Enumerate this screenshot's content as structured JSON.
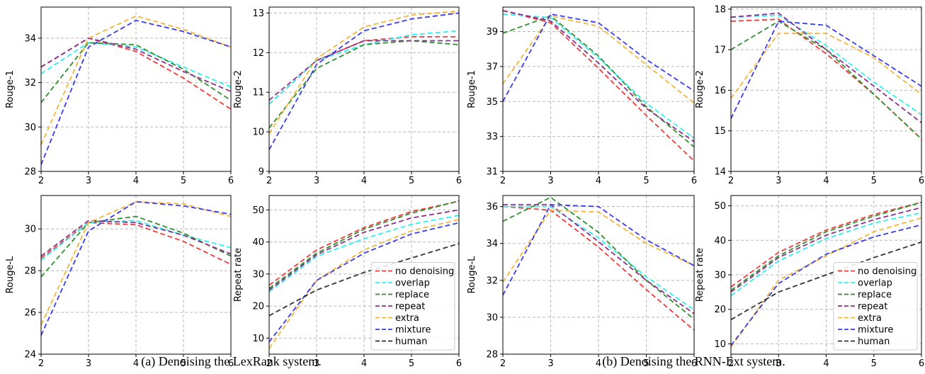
{
  "captions": [
    "(a) Denoising the LexRank system.",
    "(b) Denoising the RNN-Ext system."
  ],
  "legend": {
    "entries": [
      "no denoising",
      "overlap",
      "replace",
      "repeat",
      "extra",
      "mixture",
      "human"
    ],
    "colors": {
      "no denoising": "#f03a3a",
      "overlap": "#2ef0f0",
      "replace": "#2f8f2f",
      "repeat": "#8b2f8b",
      "extra": "#f5b53a",
      "mixture": "#3a3af0",
      "human": "#333333"
    }
  },
  "chart_data": [
    {
      "type": "line",
      "figure": "a",
      "xlabel": "",
      "ylabel": "Rouge-1",
      "x": [
        2,
        3,
        4,
        5,
        6
      ],
      "xlim": [
        2,
        6
      ],
      "ylim": [
        28,
        35.4
      ],
      "yticks": [
        28,
        30,
        32,
        34
      ],
      "grid": true,
      "series": [
        {
          "name": "no denoising",
          "values": [
            32.7,
            34.0,
            33.4,
            32.2,
            30.8
          ]
        },
        {
          "name": "overlap",
          "values": [
            32.4,
            33.8,
            33.6,
            32.7,
            31.8
          ]
        },
        {
          "name": "replace",
          "values": [
            31.1,
            33.8,
            33.7,
            32.6,
            31.2
          ]
        },
        {
          "name": "repeat",
          "values": [
            32.7,
            34.0,
            33.5,
            32.5,
            31.6
          ]
        },
        {
          "name": "extra",
          "values": [
            29.2,
            34.0,
            35.0,
            34.4,
            33.6
          ]
        },
        {
          "name": "mixture",
          "values": [
            28.3,
            33.6,
            34.8,
            34.3,
            33.6
          ]
        }
      ]
    },
    {
      "type": "line",
      "figure": "a",
      "xlabel": "",
      "ylabel": "Rouge-2",
      "x": [
        2,
        3,
        4,
        5,
        6
      ],
      "xlim": [
        2,
        6
      ],
      "ylim": [
        9,
        13.15
      ],
      "yticks": [
        9,
        10,
        11,
        12,
        13
      ],
      "grid": true,
      "series": [
        {
          "name": "no denoising",
          "values": [
            10.7,
            11.8,
            12.3,
            12.4,
            12.4
          ]
        },
        {
          "name": "overlap",
          "values": [
            10.7,
            11.8,
            12.2,
            12.45,
            12.55
          ]
        },
        {
          "name": "replace",
          "values": [
            10.1,
            11.6,
            12.2,
            12.3,
            12.2
          ]
        },
        {
          "name": "repeat",
          "values": [
            10.8,
            11.8,
            12.3,
            12.3,
            12.3
          ]
        },
        {
          "name": "extra",
          "values": [
            9.95,
            11.85,
            12.65,
            12.95,
            13.05
          ]
        },
        {
          "name": "mixture",
          "values": [
            9.55,
            11.7,
            12.55,
            12.85,
            13.0
          ]
        }
      ]
    },
    {
      "type": "line",
      "figure": "b",
      "xlabel": "",
      "ylabel": "Rouge-1",
      "x": [
        2,
        3,
        4,
        5,
        6
      ],
      "xlim": [
        2,
        6
      ],
      "ylim": [
        31,
        40.4
      ],
      "yticks": [
        31,
        33,
        35,
        37,
        39
      ],
      "grid": true,
      "series": [
        {
          "name": "no denoising",
          "values": [
            40.2,
            39.5,
            36.9,
            34.2,
            31.6
          ]
        },
        {
          "name": "overlap",
          "values": [
            40.0,
            39.8,
            37.5,
            34.9,
            32.9
          ]
        },
        {
          "name": "replace",
          "values": [
            38.9,
            39.9,
            37.6,
            34.7,
            32.4
          ]
        },
        {
          "name": "repeat",
          "values": [
            40.2,
            39.6,
            37.2,
            34.6,
            32.7
          ]
        },
        {
          "name": "extra",
          "values": [
            36.0,
            39.9,
            39.3,
            37.1,
            34.9
          ]
        },
        {
          "name": "mixture",
          "values": [
            35.0,
            40.0,
            39.5,
            37.4,
            35.6
          ]
        }
      ]
    },
    {
      "type": "line",
      "figure": "b",
      "xlabel": "",
      "ylabel": "Rouge-2",
      "x": [
        2,
        3,
        4,
        5,
        6
      ],
      "xlim": [
        2,
        6
      ],
      "ylim": [
        14,
        18.05
      ],
      "yticks": [
        14,
        15,
        16,
        17,
        18
      ],
      "grid": true,
      "series": [
        {
          "name": "no denoising",
          "values": [
            17.7,
            17.75,
            16.9,
            15.9,
            14.8
          ]
        },
        {
          "name": "overlap",
          "values": [
            17.8,
            17.85,
            17.1,
            16.2,
            15.4
          ]
        },
        {
          "name": "replace",
          "values": [
            17.0,
            17.7,
            17.0,
            15.9,
            14.8
          ]
        },
        {
          "name": "repeat",
          "values": [
            17.8,
            17.9,
            17.0,
            16.1,
            15.2
          ]
        },
        {
          "name": "extra",
          "values": [
            15.8,
            17.4,
            17.4,
            16.8,
            15.9
          ]
        },
        {
          "name": "mixture",
          "values": [
            15.3,
            17.7,
            17.6,
            16.85,
            16.1
          ]
        }
      ]
    },
    {
      "type": "line",
      "figure": "a",
      "xlabel": "",
      "ylabel": "Rouge-L",
      "x": [
        2,
        3,
        4,
        5,
        6
      ],
      "xlim": [
        2,
        6
      ],
      "ylim": [
        24,
        31.6
      ],
      "yticks": [
        24,
        26,
        28,
        30
      ],
      "grid": true,
      "series": [
        {
          "name": "no denoising",
          "values": [
            28.6,
            30.3,
            30.2,
            29.4,
            28.3
          ]
        },
        {
          "name": "overlap",
          "values": [
            28.5,
            30.3,
            30.4,
            29.7,
            29.1
          ]
        },
        {
          "name": "replace",
          "values": [
            27.7,
            30.3,
            30.6,
            29.8,
            28.7
          ]
        },
        {
          "name": "repeat",
          "values": [
            28.7,
            30.4,
            30.3,
            29.7,
            28.8
          ]
        },
        {
          "name": "extra",
          "values": [
            25.4,
            30.3,
            31.3,
            31.2,
            30.6
          ]
        },
        {
          "name": "mixture",
          "values": [
            24.9,
            29.9,
            31.3,
            31.1,
            30.7
          ]
        }
      ]
    },
    {
      "type": "line",
      "figure": "a",
      "xlabel": "",
      "ylabel": "Repeat rate",
      "x": [
        2,
        3,
        4,
        5,
        6
      ],
      "xlim": [
        2,
        6
      ],
      "ylim": [
        5,
        54.5
      ],
      "yticks": [
        10,
        20,
        30,
        40,
        50
      ],
      "grid": true,
      "series": [
        {
          "name": "no denoising",
          "values": [
            26.5,
            37.5,
            44.5,
            49.5,
            52.7
          ]
        },
        {
          "name": "overlap",
          "values": [
            24.5,
            35.5,
            41.0,
            45.5,
            48.3
          ]
        },
        {
          "name": "replace",
          "values": [
            25.5,
            36.5,
            44.0,
            49.0,
            52.8
          ]
        },
        {
          "name": "repeat",
          "values": [
            25.0,
            36.0,
            43.0,
            47.5,
            50.0
          ]
        },
        {
          "name": "extra",
          "values": [
            6.8,
            28.0,
            37.5,
            43.5,
            47.0
          ]
        },
        {
          "name": "mixture",
          "values": [
            8.8,
            28.0,
            36.5,
            42.5,
            46.0
          ]
        },
        {
          "name": "human",
          "values": [
            17.0,
            25.0,
            30.5,
            35.0,
            39.5
          ]
        }
      ]
    },
    {
      "type": "line",
      "figure": "b",
      "xlabel": "",
      "ylabel": "Rouge-L",
      "x": [
        2,
        3,
        4,
        5,
        6
      ],
      "xlim": [
        2,
        6
      ],
      "ylim": [
        28,
        36.6
      ],
      "yticks": [
        28,
        30,
        32,
        34,
        36
      ],
      "grid": true,
      "series": [
        {
          "name": "no denoising",
          "values": [
            36.0,
            35.8,
            33.8,
            31.5,
            29.3
          ]
        },
        {
          "name": "overlap",
          "values": [
            36.0,
            36.0,
            34.3,
            32.2,
            30.4
          ]
        },
        {
          "name": "replace",
          "values": [
            35.2,
            36.5,
            34.6,
            32.0,
            29.9
          ]
        },
        {
          "name": "repeat",
          "values": [
            36.1,
            36.1,
            34.1,
            32.0,
            30.2
          ]
        },
        {
          "name": "extra",
          "values": [
            31.9,
            35.8,
            35.7,
            34.0,
            32.8
          ]
        },
        {
          "name": "mixture",
          "values": [
            31.2,
            36.1,
            36.0,
            34.2,
            32.8
          ]
        }
      ]
    },
    {
      "type": "line",
      "figure": "b",
      "xlabel": "",
      "ylabel": "Repeat rate",
      "x": [
        2,
        3,
        4,
        5,
        6
      ],
      "xlim": [
        2,
        6
      ],
      "ylim": [
        7,
        53
      ],
      "yticks": [
        10,
        20,
        30,
        40,
        50
      ],
      "grid": true,
      "series": [
        {
          "name": "no denoising",
          "values": [
            26.5,
            36.5,
            43.0,
            47.5,
            51.0
          ]
        },
        {
          "name": "overlap",
          "values": [
            24.0,
            34.0,
            40.5,
            45.0,
            48.0
          ]
        },
        {
          "name": "replace",
          "values": [
            25.5,
            35.5,
            42.5,
            47.0,
            51.0
          ]
        },
        {
          "name": "repeat",
          "values": [
            25.0,
            35.0,
            41.5,
            46.0,
            49.5
          ]
        },
        {
          "name": "extra",
          "values": [
            9.0,
            28.5,
            35.5,
            42.5,
            46.5
          ]
        },
        {
          "name": "mixture",
          "values": [
            9.5,
            27.5,
            36.0,
            41.0,
            44.5
          ]
        },
        {
          "name": "human",
          "values": [
            17.0,
            25.0,
            30.0,
            35.0,
            39.5
          ]
        }
      ]
    }
  ]
}
